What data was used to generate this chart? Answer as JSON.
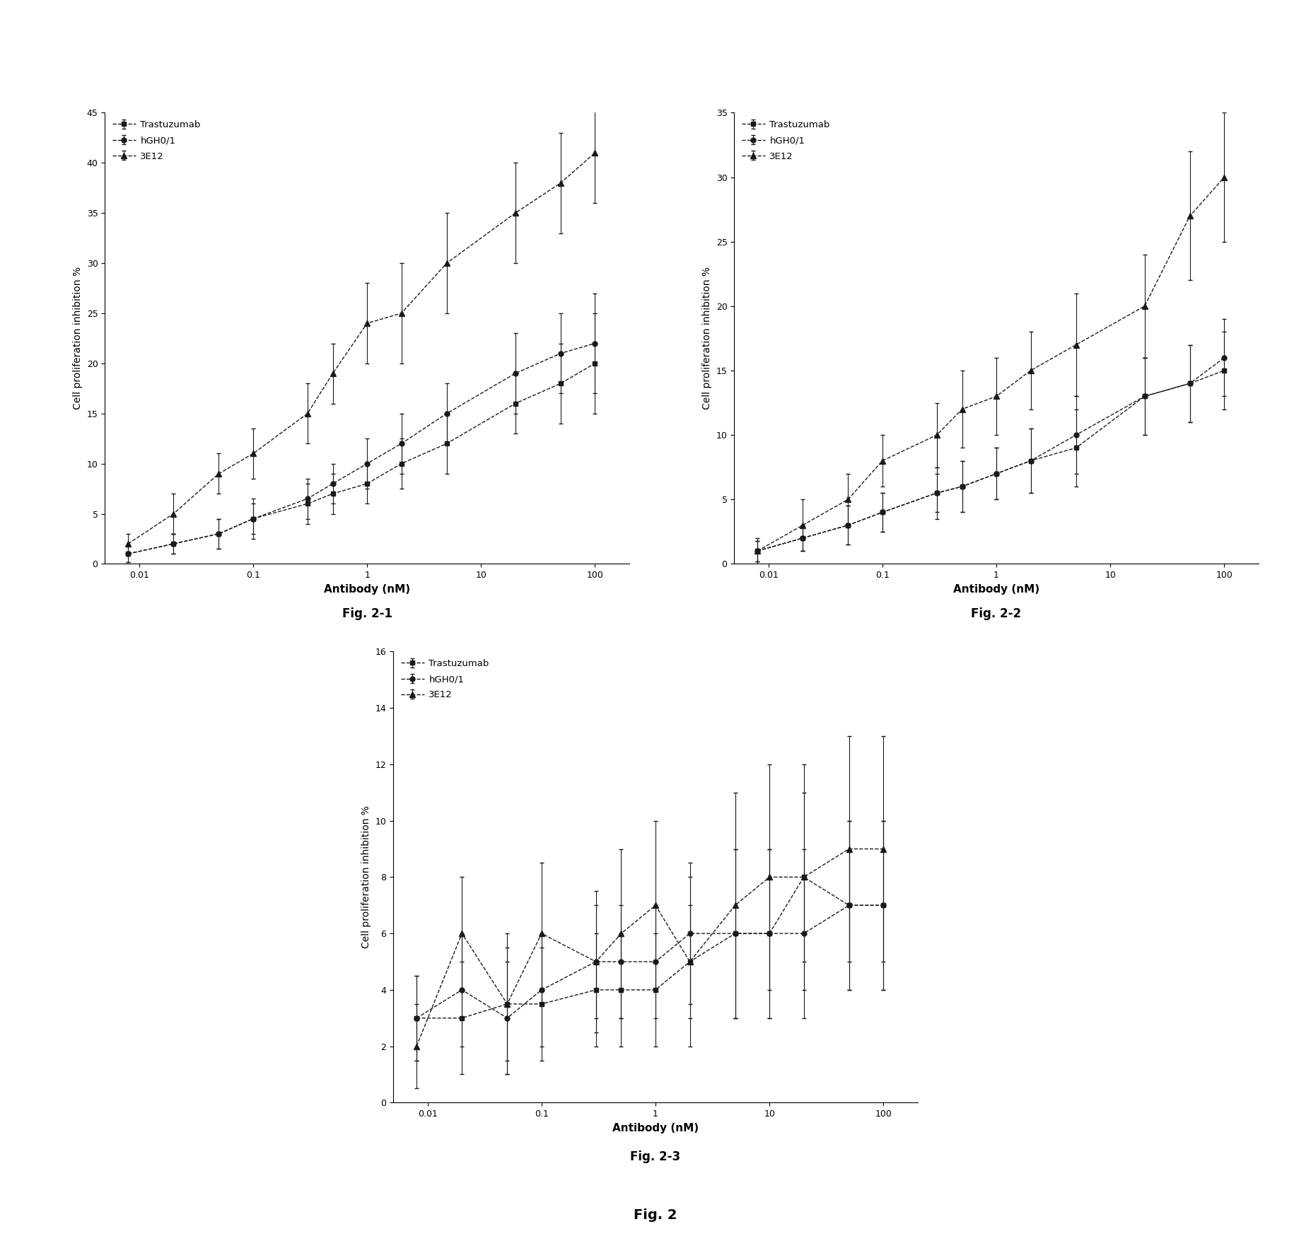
{
  "fig1": {
    "title": "Fig. 2-1",
    "ylabel": "Cell proliferation inhibition %",
    "xlabel": "Antibody (nM)",
    "ylim": [
      0,
      45
    ],
    "yticks": [
      0,
      5,
      10,
      15,
      20,
      25,
      30,
      35,
      40,
      45
    ],
    "x": [
      0.008,
      0.02,
      0.05,
      0.1,
      0.3,
      0.5,
      1,
      2,
      5,
      20,
      50,
      100
    ],
    "trastuzumab_y": [
      1,
      2,
      3,
      4.5,
      6,
      7,
      8,
      10,
      12,
      16,
      18,
      20
    ],
    "trastuzumab_yerr": [
      0.8,
      1,
      1.5,
      1.5,
      2,
      2,
      2,
      2.5,
      3,
      3,
      4,
      5
    ],
    "hGH01_y": [
      1,
      2,
      3,
      4.5,
      6.5,
      8,
      10,
      12,
      15,
      19,
      21,
      22
    ],
    "hGH01_yerr": [
      0.8,
      1,
      1.5,
      2,
      2,
      2,
      2.5,
      3,
      3,
      4,
      4,
      5
    ],
    "3E12_y": [
      2,
      5,
      9,
      11,
      15,
      19,
      24,
      25,
      30,
      35,
      38,
      41
    ],
    "3E12_yerr": [
      1,
      2,
      2,
      2.5,
      3,
      3,
      4,
      5,
      5,
      5,
      5,
      5
    ]
  },
  "fig2": {
    "title": "Fig. 2-2",
    "ylabel": "Cell proliferation inhibition %",
    "xlabel": "Antibody (nM)",
    "ylim": [
      0,
      35
    ],
    "yticks": [
      0,
      5,
      10,
      15,
      20,
      25,
      30,
      35
    ],
    "x": [
      0.008,
      0.02,
      0.05,
      0.1,
      0.3,
      0.5,
      1,
      2,
      5,
      20,
      50,
      100
    ],
    "trastuzumab_y": [
      1,
      2,
      3,
      4,
      5.5,
      6,
      7,
      8,
      9,
      13,
      14,
      15
    ],
    "trastuzumab_yerr": [
      0.8,
      1,
      1.5,
      1.5,
      1.5,
      2,
      2,
      2.5,
      3,
      3,
      3,
      3
    ],
    "hGH01_y": [
      1,
      2,
      3,
      4,
      5.5,
      6,
      7,
      8,
      10,
      13,
      14,
      16
    ],
    "hGH01_yerr": [
      0.8,
      1,
      1.5,
      1.5,
      2,
      2,
      2,
      2.5,
      3,
      3,
      3,
      3
    ],
    "3E12_y": [
      1,
      3,
      5,
      8,
      10,
      12,
      13,
      15,
      17,
      20,
      27,
      30
    ],
    "3E12_yerr": [
      1,
      2,
      2,
      2,
      2.5,
      3,
      3,
      3,
      4,
      4,
      5,
      5
    ]
  },
  "fig3": {
    "title": "Fig. 2-3",
    "ylabel": "Cell proliferation inhibition %",
    "xlabel": "Antibody (nM)",
    "ylim": [
      0,
      16
    ],
    "yticks": [
      0,
      2,
      4,
      6,
      8,
      10,
      12,
      14,
      16
    ],
    "x": [
      0.008,
      0.02,
      0.05,
      0.1,
      0.3,
      0.5,
      1,
      2,
      5,
      10,
      20,
      50,
      100
    ],
    "trastuzumab_y": [
      3,
      3,
      3.5,
      3.5,
      4,
      4,
      4,
      5,
      6,
      6,
      8,
      7,
      7
    ],
    "trastuzumab_yerr": [
      1.5,
      2,
      2,
      2,
      2,
      2,
      2,
      2,
      3,
      3,
      3,
      3,
      3
    ],
    "hGH01_y": [
      3,
      4,
      3,
      4,
      5,
      5,
      5,
      6,
      6,
      6,
      6,
      7,
      7
    ],
    "hGH01_yerr": [
      1.5,
      2,
      2,
      2,
      2,
      2,
      2,
      2.5,
      3,
      3,
      3,
      3,
      3
    ],
    "3E12_y": [
      2,
      6,
      3.5,
      6,
      5,
      6,
      7,
      5,
      7,
      8,
      8,
      9,
      9
    ],
    "3E12_yerr": [
      1.5,
      2,
      2.5,
      2.5,
      2.5,
      3,
      3,
      3,
      4,
      4,
      4,
      4,
      4
    ]
  },
  "main_title": "Fig. 2",
  "legend_labels": [
    "Trastuzumab",
    "hGH0/1",
    "3E12"
  ],
  "xtick_vals": [
    0.01,
    0.1,
    1,
    10,
    100
  ],
  "xtick_labels": [
    "0.01",
    "0.1",
    "1",
    "10",
    "100"
  ]
}
